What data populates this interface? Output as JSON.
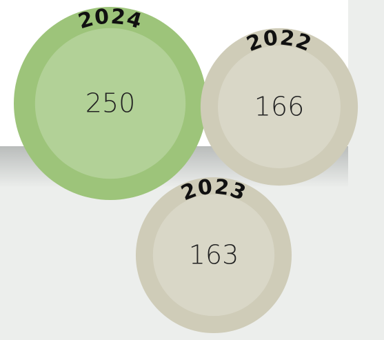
{
  "chart_data": {
    "type": "bubble",
    "categories": [
      "2024",
      "2022",
      "2023"
    ],
    "values": [
      250,
      166,
      163
    ],
    "colors": [
      "#9dc47a",
      "#cfccb8",
      "#cfccb8"
    ]
  }
}
